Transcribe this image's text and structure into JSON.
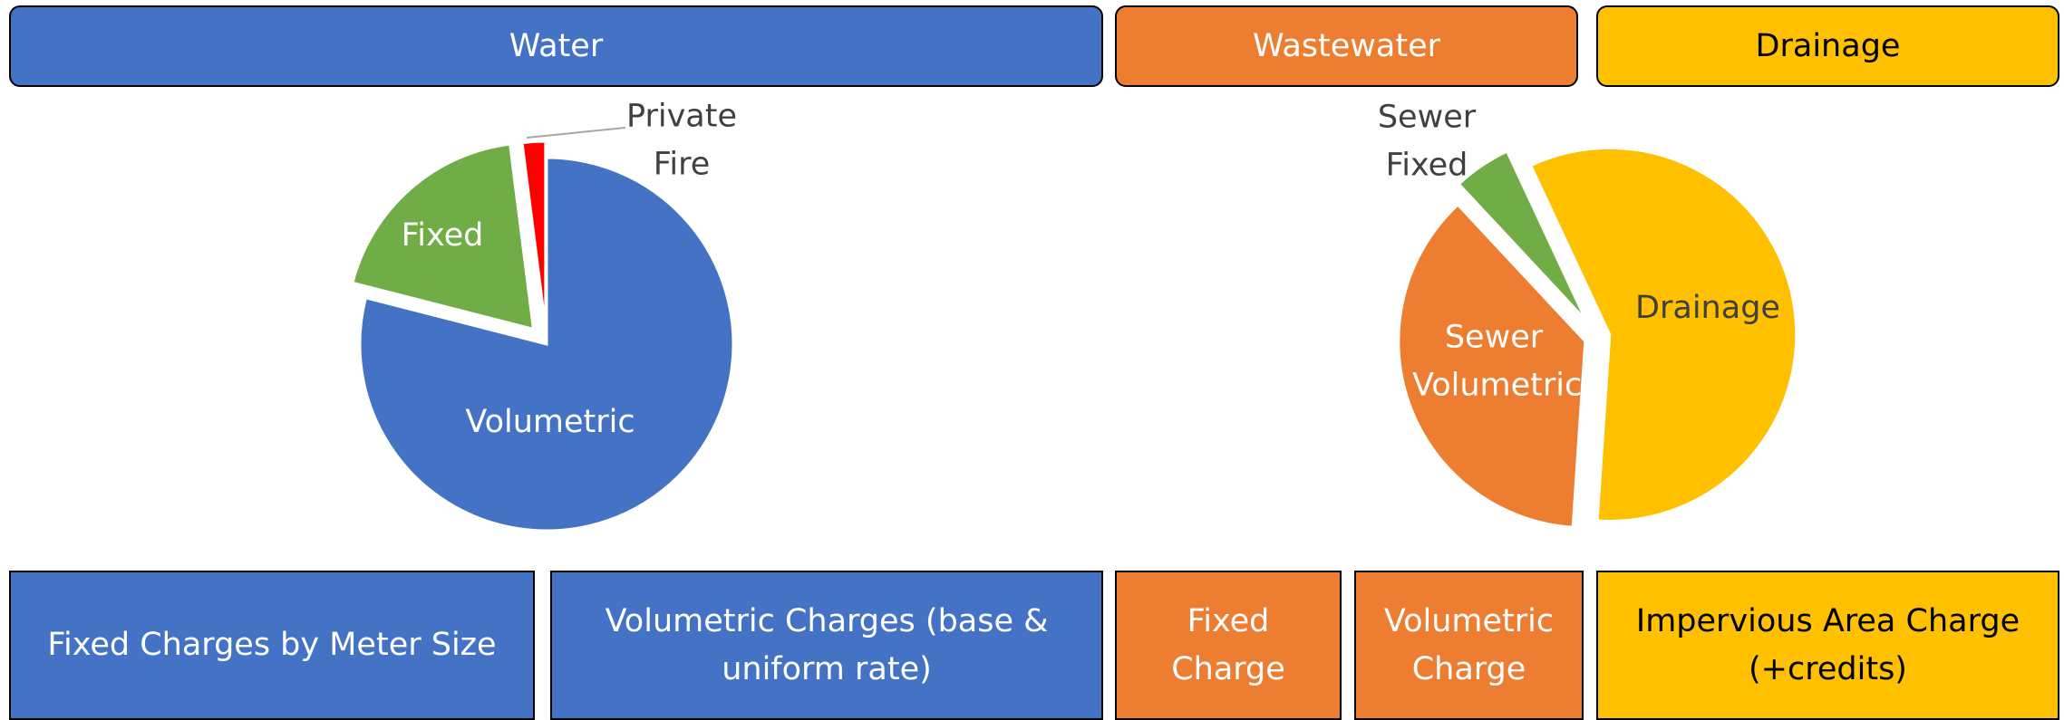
{
  "headers": [
    "Water",
    "Wastewater",
    "Drainage"
  ],
  "chart_data": [
    {
      "type": "pie",
      "categories": [
        "Volumetric",
        "Fixed",
        "Private Fire"
      ],
      "values": [
        79,
        19,
        2
      ],
      "colors": [
        "#4472c4",
        "#70ad47",
        "#ff0000"
      ]
    },
    {
      "type": "pie",
      "categories": [
        "Drainage",
        "Sewer Volumetric",
        "Sewer Fixed"
      ],
      "values": [
        58,
        37,
        5
      ],
      "colors": [
        "#ffc000",
        "#ed7d31",
        "#70ad47"
      ]
    }
  ],
  "boxes": [
    "Fixed Charges by Meter Size",
    "Volumetric Charges (base & uniform rate)",
    "Fixed Charge",
    "Volumetric Charge",
    "Impervious Area Charge (+credits)"
  ]
}
